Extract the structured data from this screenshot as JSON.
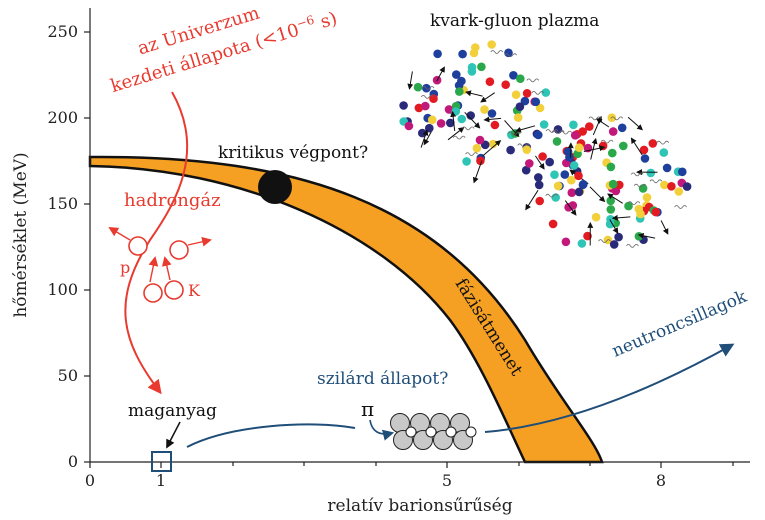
{
  "chart_data": {
    "type": "diagram",
    "xlabel": "relatív barionsűrűség",
    "ylabel": "hőmérséklet (MeV)",
    "x_ticks": [
      "0",
      "1",
      "5",
      "8"
    ],
    "y_ticks": [
      "0",
      "50",
      "100",
      "150",
      "200",
      "250"
    ],
    "xlim": [
      0,
      9.3
    ],
    "ylim": [
      0,
      260
    ]
  },
  "labels": {
    "early_universe_line1": "az Univerzum",
    "early_universe_line2_main": "kezdeti állapota (<10",
    "early_universe_line2_sup": "−6",
    "early_universe_line2_end": " s)",
    "critical_point": "kritikus végpont?",
    "qgp": "kvark-gluon plazma",
    "hadron_gas": "hadrongáz",
    "proton": "p",
    "kaon": "K",
    "phase_transition": "fázisátmenet",
    "solid_state": "szilárd állapot?",
    "neutron_stars": "neutroncsillagok",
    "nuclear_matter": "maganyag",
    "pion": "π"
  },
  "colors": {
    "band": "#f5a023",
    "red": "#e83a2e",
    "blue": "#1f4e79",
    "axis": "#222222"
  }
}
